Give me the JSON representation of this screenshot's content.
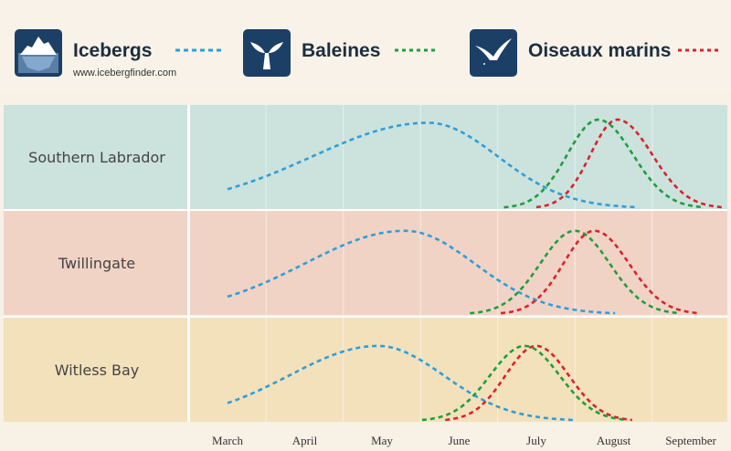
{
  "legend": {
    "icebergs": {
      "label": "Icebergs",
      "sub": "www.icebergfinder.com",
      "icon": "iceberg-icon",
      "color": "#2d9fd8"
    },
    "whales": {
      "label": "Baleines",
      "icon": "whale-tail-icon",
      "color": "#1e9e3c"
    },
    "seabirds": {
      "label": "Oiseaux marins",
      "icon": "seabird-icon",
      "color": "#d9232a"
    }
  },
  "colors": {
    "logo_bg": "#1c3f66",
    "row_bg": [
      "#cce2dd",
      "#f1d3c6",
      "#f3e1bc"
    ]
  },
  "chart_data": {
    "type": "line",
    "x_axis": {
      "ticks": [
        "March",
        "April",
        "May",
        "June",
        "July",
        "August",
        "September"
      ]
    },
    "y_axis": {
      "note": "relative abundance (no scale shown)"
    },
    "grid": true,
    "rows": [
      {
        "name": "Southern Labrador",
        "series": [
          {
            "name": "Icebergs",
            "color": "#2d9fd8",
            "peak_month": 5.6,
            "rise_months": 1.5,
            "fall_months": 0.9,
            "peak_height": 0.82
          },
          {
            "name": "Baleines",
            "color": "#1e9e3c",
            "peak_month": 7.8,
            "rise_months": 0.4,
            "fall_months": 0.45,
            "peak_height": 0.85
          },
          {
            "name": "Oiseaux marins",
            "color": "#d9232a",
            "peak_month": 8.05,
            "rise_months": 0.35,
            "fall_months": 0.45,
            "peak_height": 0.85
          }
        ]
      },
      {
        "name": "Twillingate",
        "series": [
          {
            "name": "Icebergs",
            "color": "#2d9fd8",
            "peak_month": 5.3,
            "rise_months": 1.3,
            "fall_months": 0.9,
            "peak_height": 0.8
          },
          {
            "name": "Baleines",
            "color": "#1e9e3c",
            "peak_month": 7.5,
            "rise_months": 0.45,
            "fall_months": 0.45,
            "peak_height": 0.8
          },
          {
            "name": "Oiseaux marins",
            "color": "#d9232a",
            "peak_month": 7.75,
            "rise_months": 0.4,
            "fall_months": 0.45,
            "peak_height": 0.8
          }
        ]
      },
      {
        "name": "Witless Bay",
        "series": [
          {
            "name": "Icebergs",
            "color": "#2d9fd8",
            "peak_month": 4.95,
            "rise_months": 1.15,
            "fall_months": 0.85,
            "peak_height": 0.72
          },
          {
            "name": "Baleines",
            "color": "#1e9e3c",
            "peak_month": 6.85,
            "rise_months": 0.45,
            "fall_months": 0.45,
            "peak_height": 0.72
          },
          {
            "name": "Oiseaux marins",
            "color": "#d9232a",
            "peak_month": 7.0,
            "rise_months": 0.4,
            "fall_months": 0.42,
            "peak_height": 0.72
          }
        ]
      }
    ]
  }
}
